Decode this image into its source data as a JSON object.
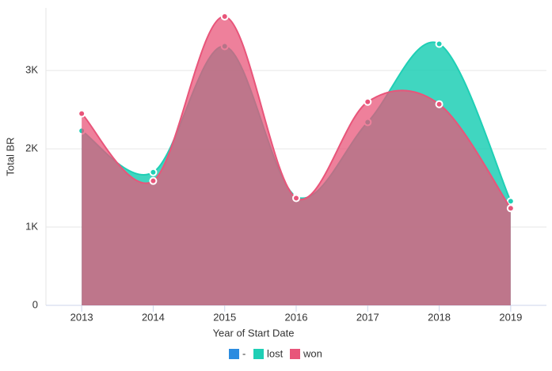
{
  "chart_data": {
    "type": "areaspline",
    "x_label": "Year of Start Date",
    "y_label": "Total BR",
    "categories": [
      "2013",
      "2014",
      "2015",
      "2016",
      "2017",
      "2018",
      "2019"
    ],
    "series": [
      {
        "name": "-",
        "color": "#2b8ce0",
        "values": [
          null,
          null,
          null,
          null,
          null,
          null,
          null
        ]
      },
      {
        "name": "lost",
        "color": "#1fcfb5",
        "values": [
          2230,
          1700,
          3310,
          1390,
          2340,
          3340,
          1330
        ]
      },
      {
        "name": "won",
        "color": "#e8557a",
        "values": [
          2450,
          1590,
          3690,
          1370,
          2600,
          2570,
          1240
        ]
      }
    ],
    "ylim": [
      0,
      3800
    ],
    "yticks": [
      0,
      {
        "value": 1000,
        "label": "1K"
      },
      {
        "value": 2000,
        "label": "2K"
      },
      {
        "value": 3000,
        "label": "3K"
      }
    ],
    "grid": true
  }
}
